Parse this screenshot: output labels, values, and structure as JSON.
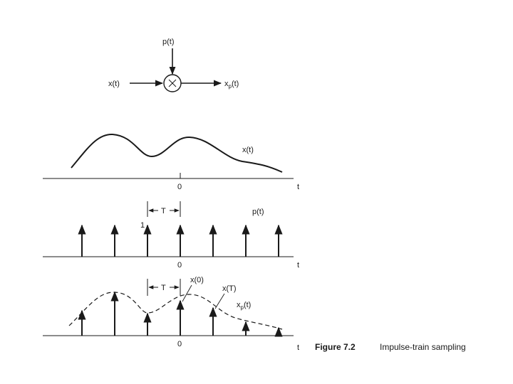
{
  "multiplier": {
    "input_label": "x(t)",
    "carrier_label": "p(t)",
    "output_label": "x",
    "output_sub": "p",
    "output_tail": "(t)"
  },
  "signal_panel": {
    "curve_label": "x(t)",
    "origin_label": "0",
    "axis_label": "t"
  },
  "train_panel": {
    "train_label": "p(t)",
    "amplitude_label": "1",
    "period_label": "T",
    "origin_label": "0",
    "axis_label": "t"
  },
  "sampled_panel": {
    "period_label": "T",
    "sample0_label": "x(0)",
    "sampleT_label": "x(T)",
    "signal_label": "x",
    "signal_sub": "p",
    "signal_tail": "(t)",
    "origin_label": "0",
    "axis_label": "t"
  },
  "caption": {
    "number": "Figure 7.2",
    "text": "Impulse-train sampling"
  }
}
